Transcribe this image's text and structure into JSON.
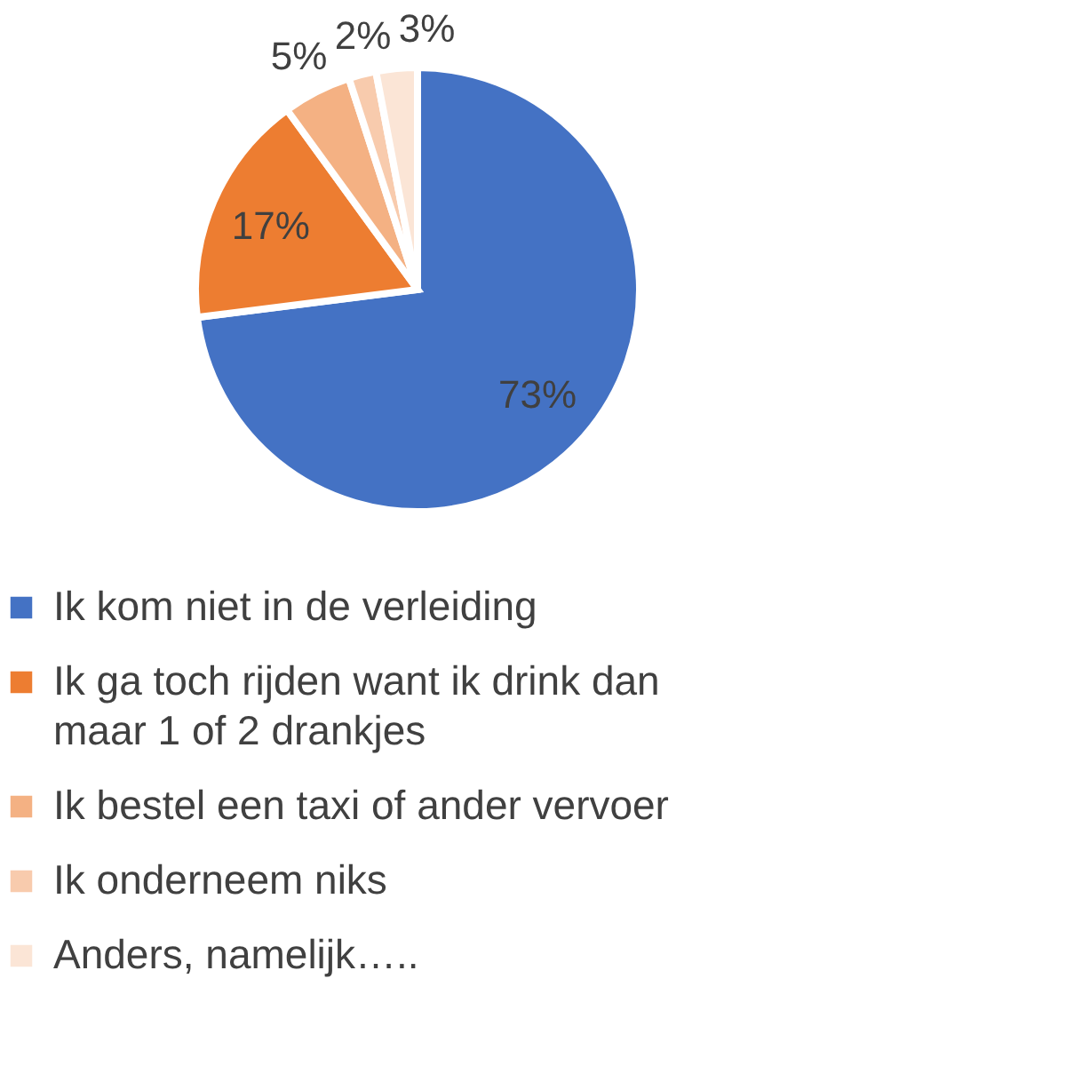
{
  "chart_data": {
    "type": "pie",
    "categories": [
      "Ik kom niet in de verleiding",
      "Ik ga toch rijden want ik drink dan maar 1 of 2 drankjes",
      "Ik bestel een taxi of ander vervoer",
      "Ik onderneem niks",
      "Anders, namelijk….."
    ],
    "values": [
      73,
      17,
      5,
      2,
      3
    ],
    "value_labels": [
      "73%",
      "17%",
      "5%",
      "2%",
      "3%"
    ],
    "colors": [
      "#4472c4",
      "#ed7d31",
      "#f4b183",
      "#f8cbad",
      "#fbe5d6"
    ],
    "legend": "bottom"
  }
}
